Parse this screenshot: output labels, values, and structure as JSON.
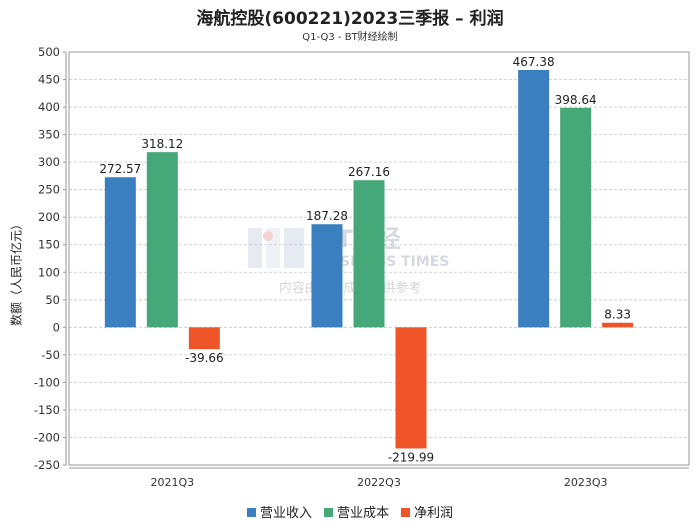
{
  "chart_data": {
    "type": "bar",
    "title": "海航控股(600221)2023三季报 – 利润",
    "subtitle": "Q1-Q3 - BT财经绘制",
    "xlabel": "",
    "ylabel": "数额（人民币亿元）",
    "ylim": [
      -250,
      500
    ],
    "yticks": [
      -250,
      -200,
      -150,
      -100,
      -50,
      0,
      50,
      100,
      150,
      200,
      250,
      300,
      350,
      400,
      450,
      500
    ],
    "categories": [
      "2021Q3",
      "2022Q3",
      "2023Q3"
    ],
    "series": [
      {
        "name": "营业收入",
        "color": "#3a80c0",
        "values": [
          272.57,
          187.28,
          467.38
        ]
      },
      {
        "name": "营业成本",
        "color": "#45a878",
        "values": [
          318.12,
          267.16,
          398.64
        ]
      },
      {
        "name": "净利润",
        "color": "#f0552a",
        "values": [
          -39.66,
          -219.99,
          8.33
        ]
      }
    ],
    "grid": true,
    "legend": "bottom-center"
  },
  "watermark": {
    "logo_text": "BT财经",
    "logo_sub": "BUSINESS TIMES",
    "note": "内容由AI生成，仅供参考"
  }
}
